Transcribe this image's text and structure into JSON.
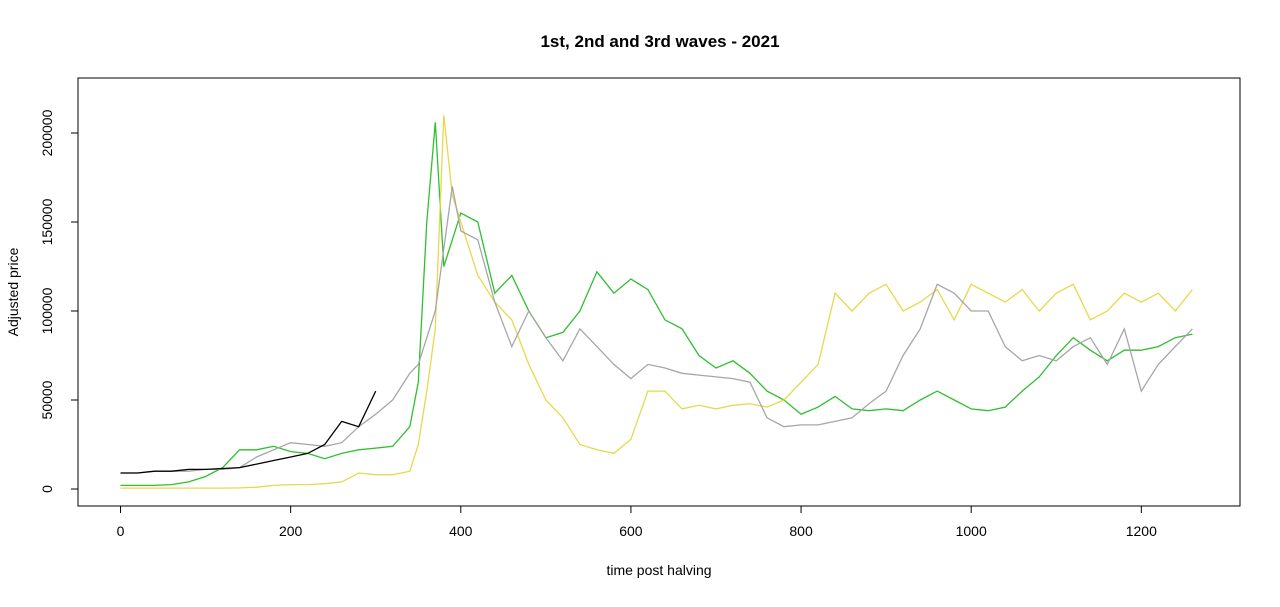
{
  "chart_data": {
    "type": "line",
    "title": "1st, 2nd and 3rd waves - 2021",
    "x_label": "time post halving",
    "y_label": "Adjusted price",
    "x": [
      0,
      20,
      40,
      60,
      80,
      100,
      120,
      140,
      160,
      180,
      200,
      220,
      240,
      260,
      280,
      300,
      320,
      340,
      350,
      360,
      370,
      380,
      390,
      400,
      420,
      440,
      460,
      480,
      500,
      520,
      540,
      560,
      580,
      600,
      620,
      640,
      660,
      680,
      700,
      720,
      740,
      760,
      780,
      800,
      820,
      840,
      860,
      880,
      900,
      920,
      940,
      960,
      980,
      1000,
      1020,
      1040,
      1060,
      1080,
      1100,
      1120,
      1140,
      1160,
      1180,
      1200,
      1220,
      1240,
      1260
    ],
    "series": [
      {
        "color": "#2fbf2f",
        "values": [
          2000,
          2000,
          2000,
          2500,
          4000,
          7000,
          12000,
          22000,
          22000,
          24000,
          21000,
          20000,
          17000,
          20000,
          22000,
          23000,
          24000,
          35000,
          60000,
          150000,
          206000,
          125000,
          140000,
          155000,
          150000,
          110000,
          120000,
          100000,
          85000,
          88000,
          100000,
          122000,
          110000,
          118000,
          112000,
          95000,
          90000,
          75000,
          68000,
          72000,
          65000,
          55000,
          50000,
          42000,
          46000,
          52000,
          45000,
          44000,
          45000,
          44000,
          50000,
          55000,
          50000,
          45000,
          44000,
          46000,
          55000,
          63000,
          75000,
          85000,
          78000,
          72000,
          78000,
          78000,
          80000,
          85000,
          87000
        ]
      },
      {
        "color": "#e8d84a",
        "values": [
          500,
          500,
          500,
          500,
          500,
          500,
          500,
          600,
          1000,
          2000,
          2500,
          2500,
          3000,
          4000,
          9000,
          8000,
          8000,
          10000,
          25000,
          55000,
          90000,
          210000,
          165000,
          150000,
          120000,
          105000,
          95000,
          70000,
          50000,
          40000,
          25000,
          22000,
          20000,
          28000,
          55000,
          55000,
          45000,
          47000,
          45000,
          47000,
          48000,
          46000,
          50000,
          60000,
          70000,
          110000,
          100000,
          110000,
          115000,
          100000,
          105000,
          112000,
          95000,
          115000,
          110000,
          105000,
          112000,
          100000,
          110000,
          115000,
          95000,
          100000,
          110000,
          105000,
          110000,
          100000,
          112000
        ]
      },
      {
        "color": "#a6a6a6",
        "values": [
          9000,
          9000,
          10000,
          10000,
          10000,
          11000,
          11000,
          12000,
          18000,
          22000,
          26000,
          25000,
          24000,
          26000,
          35000,
          42000,
          50000,
          65000,
          70000,
          85000,
          100000,
          135000,
          170000,
          145000,
          140000,
          105000,
          80000,
          100000,
          85000,
          72000,
          90000,
          80000,
          70000,
          62000,
          70000,
          68000,
          65000,
          64000,
          63000,
          62000,
          60000,
          40000,
          35000,
          36000,
          36000,
          38000,
          40000,
          48000,
          55000,
          75000,
          90000,
          115000,
          110000,
          100000,
          100000,
          80000,
          72000,
          75000,
          72000,
          80000,
          85000,
          70000,
          90000,
          55000,
          70000,
          80000,
          90000
        ]
      },
      {
        "color": "#000000",
        "values": [
          9000,
          9000,
          10000,
          10000,
          11000,
          11000,
          11500,
          12000,
          14000,
          16000,
          18000,
          20000,
          25000,
          38000,
          35000,
          55000,
          null,
          null,
          null,
          null,
          null,
          null,
          null,
          null,
          null,
          null,
          null,
          null,
          null,
          null,
          null,
          null,
          null,
          null,
          null,
          null,
          null,
          null,
          null,
          null,
          null,
          null,
          null,
          null,
          null,
          null,
          null,
          null,
          null,
          null,
          null,
          null,
          null,
          null,
          null,
          null,
          null,
          null,
          null,
          null,
          null,
          null,
          null,
          null,
          null,
          null,
          null
        ]
      }
    ],
    "xlim": [
      -50,
      1316
    ],
    "ylim": [
      -9550,
      230900
    ],
    "xticks": [
      0,
      200,
      400,
      600,
      800,
      1000,
      1200
    ],
    "yticks": [
      0,
      50000,
      100000,
      150000,
      200000
    ],
    "grid": false
  }
}
